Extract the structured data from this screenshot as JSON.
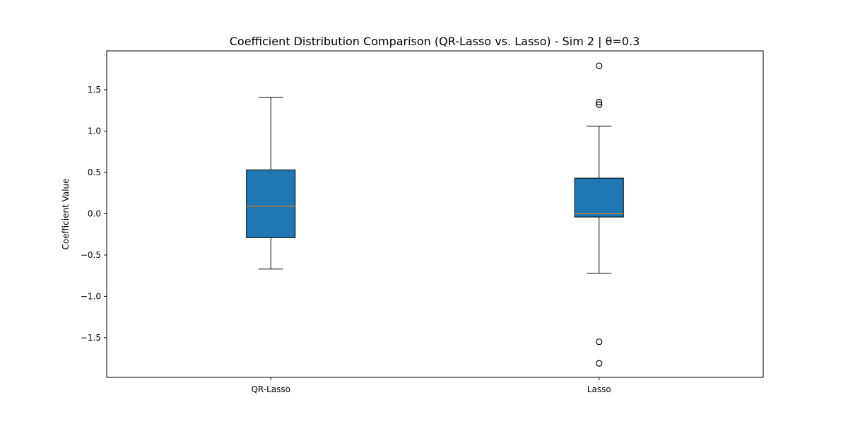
{
  "chart_data": {
    "type": "box",
    "title": "Coefficient Distribution Comparison (QR-Lasso vs. Lasso) - Sim 2 | θ=0.3",
    "xlabel": "",
    "ylabel": "Coefficient Value",
    "ylim": [
      -1.98,
      1.97
    ],
    "yticks": [
      {
        "value": 1.5,
        "label": "1.5"
      },
      {
        "value": 1.0,
        "label": "1.0"
      },
      {
        "value": 0.5,
        "label": "0.5"
      },
      {
        "value": 0.0,
        "label": "0.0"
      },
      {
        "value": -0.5,
        "label": "−0.5"
      },
      {
        "value": -1.0,
        "label": "−1.0"
      },
      {
        "value": -1.5,
        "label": "−1.5"
      }
    ],
    "categories": [
      "QR-Lasso",
      "Lasso"
    ],
    "boxes": [
      {
        "name": "QR-Lasso",
        "whisker_low": -0.67,
        "q1": -0.29,
        "median": 0.09,
        "q3": 0.53,
        "whisker_high": 1.41,
        "outliers": []
      },
      {
        "name": "Lasso",
        "whisker_low": -0.72,
        "q1": -0.04,
        "median": 0.0,
        "q3": 0.43,
        "whisker_high": 1.06,
        "outliers": [
          1.79,
          1.35,
          1.32,
          -1.55,
          -1.81
        ]
      }
    ],
    "grid": false,
    "legend": "none",
    "colors": {
      "box_fill": "#1f77b4",
      "median": "#ff7f0e",
      "edge": "#000000"
    }
  }
}
